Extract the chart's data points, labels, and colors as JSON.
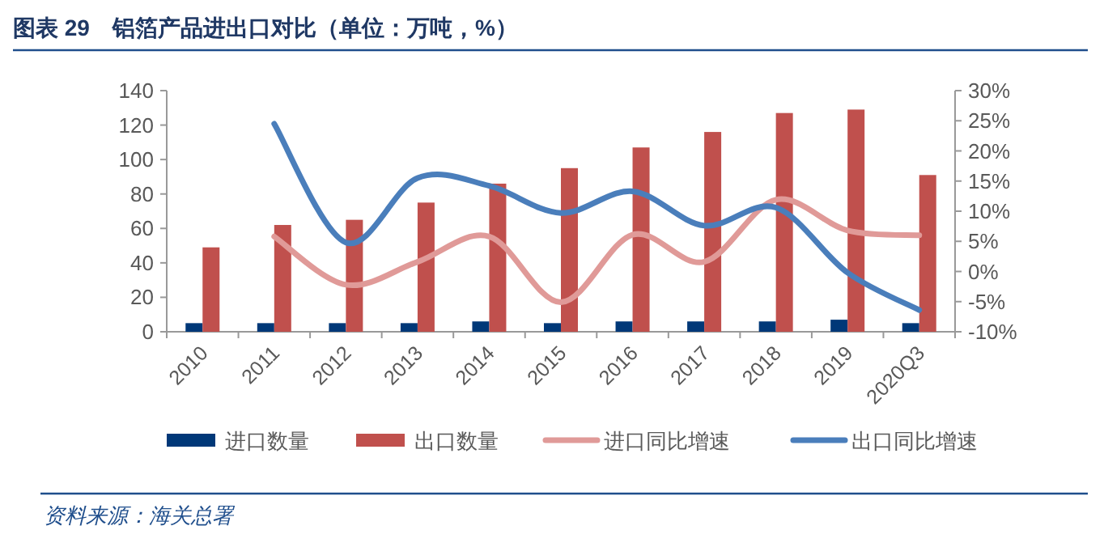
{
  "chart_data": {
    "type": "bar",
    "title": "图表 29　铝箔产品进出口对比（单位：万吨，%）",
    "categories": [
      "2010",
      "2011",
      "2012",
      "2013",
      "2014",
      "2015",
      "2016",
      "2017",
      "2018",
      "2019",
      "2020Q3"
    ],
    "series": [
      {
        "name": "进口数量",
        "color": "#003878",
        "values": [
          5,
          5,
          5,
          5,
          6,
          5,
          6,
          6,
          6,
          7,
          5
        ]
      },
      {
        "name": "出口数量",
        "color": "#c0504d",
        "values": [
          49,
          62,
          65,
          75,
          86,
          95,
          107,
          116,
          127,
          129,
          91
        ]
      },
      {
        "name": "进口同比增速",
        "type": "line",
        "axis": "y2",
        "color": "#e09a98",
        "values": [
          null,
          5.8,
          -2.2,
          1.6,
          5.8,
          -5.1,
          6.1,
          1.6,
          11.9,
          6.8,
          6
        ]
      },
      {
        "name": "出口同比增速",
        "type": "line",
        "axis": "y2",
        "color": "#4a7ebb",
        "values": [
          null,
          24.5,
          4.8,
          15.5,
          14.2,
          9.7,
          13.3,
          7.6,
          10.6,
          -0.2,
          -6.4
        ]
      }
    ],
    "ylim": [
      0,
      140
    ],
    "yticks": [
      0,
      20,
      40,
      60,
      80,
      100,
      120,
      140
    ],
    "y2lim": [
      -10,
      30
    ],
    "y2ticks": [
      {
        "value": -10,
        "label": "-10%"
      },
      {
        "value": -5,
        "label": "-5%"
      },
      {
        "value": 0,
        "label": "0%"
      },
      {
        "value": 5,
        "label": "5%"
      },
      {
        "value": 10,
        "label": "10%"
      },
      {
        "value": 15,
        "label": "15%"
      },
      {
        "value": 20,
        "label": "20%"
      },
      {
        "value": 25,
        "label": "25%"
      },
      {
        "value": 30,
        "label": "30%"
      }
    ],
    "grid": false,
    "legend": "bottom",
    "marker": "none",
    "line_style": "solid",
    "annotations": [
      "资料来源：海关总署"
    ]
  }
}
